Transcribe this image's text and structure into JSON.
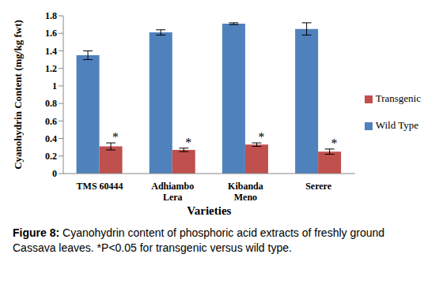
{
  "chart_data": {
    "type": "bar",
    "caption": {
      "label": "Figure 8:",
      "text": "Cyanohydrin content of phosphoric acid extracts of freshly ground Cassava leaves. *P<0.05 for transgenic versus wild type."
    },
    "x_label": "Varieties",
    "y_label": "Cyanohydrin Content (mg/kg fwt)",
    "categories": [
      "TMS 60444",
      "Adhiambo Lera",
      "Kibanda Meno",
      "Serere"
    ],
    "series": [
      {
        "name": "Wild Type",
        "color": "#4f81bd",
        "values": [
          1.35,
          1.61,
          1.71,
          1.65
        ],
        "errors": [
          0.05,
          0.03,
          0.01,
          0.07
        ]
      },
      {
        "name": "Transgenic",
        "color": "#c0504d",
        "values": [
          0.31,
          0.27,
          0.33,
          0.25
        ],
        "errors": [
          0.04,
          0.02,
          0.02,
          0.03
        ],
        "annotation": "*"
      }
    ],
    "ylim": [
      0,
      1.8
    ],
    "yticks": [
      0,
      0.2,
      0.4,
      0.6,
      0.8,
      1,
      1.2,
      1.4,
      1.6,
      1.8
    ],
    "grid": false,
    "legend": "right"
  }
}
